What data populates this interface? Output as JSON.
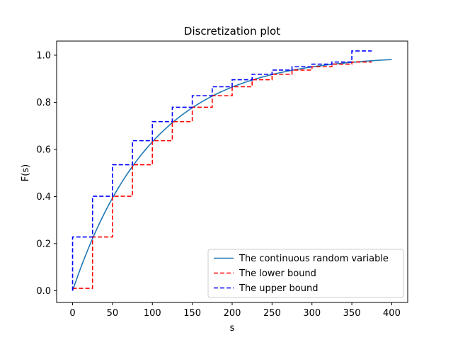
{
  "chart_data": {
    "type": "line",
    "title": "Discretization plot",
    "xlabel": "s",
    "ylabel": "F(s)",
    "xlim": [
      -20,
      420
    ],
    "ylim": [
      -0.05,
      1.06
    ],
    "xticks": [
      0,
      50,
      100,
      150,
      200,
      250,
      300,
      350,
      400
    ],
    "yticks": [
      0.0,
      0.2,
      0.4,
      0.6,
      0.8,
      1.0
    ],
    "xtick_labels": [
      "0",
      "50",
      "100",
      "150",
      "200",
      "250",
      "300",
      "350",
      "400"
    ],
    "ytick_labels": [
      "0.0",
      "0.2",
      "0.4",
      "0.6",
      "0.8",
      "1.0"
    ],
    "legend_position": "lower-right",
    "series": [
      {
        "name": "The continuous random variable",
        "style": "solid",
        "color": "#1f77b4",
        "x": [
          0,
          25,
          50,
          75,
          100,
          125,
          150,
          175,
          200,
          225,
          250,
          275,
          300,
          325,
          350,
          375,
          400
        ],
        "y": [
          0.0,
          0.221,
          0.393,
          0.528,
          0.632,
          0.713,
          0.777,
          0.826,
          0.865,
          0.895,
          0.918,
          0.936,
          0.95,
          0.961,
          0.97,
          0.977,
          0.982
        ]
      },
      {
        "name": "The lower bound",
        "style": "dashed",
        "color": "#ff0000",
        "x": [
          0,
          25,
          50,
          75,
          100,
          125,
          150,
          175,
          200,
          225,
          250,
          275,
          300,
          325,
          350
        ],
        "y": [
          0.01,
          0.228,
          0.401,
          0.535,
          0.637,
          0.718,
          0.779,
          0.828,
          0.866,
          0.896,
          0.919,
          0.937,
          0.951,
          0.962,
          0.971
        ],
        "step_end": 375
      },
      {
        "name": "The upper bound",
        "style": "dashed",
        "color": "#0000ff",
        "x": [
          0,
          25,
          50,
          75,
          100,
          125,
          150,
          175,
          200,
          225,
          250,
          275,
          300,
          325,
          350
        ],
        "y": [
          0.228,
          0.401,
          0.535,
          0.637,
          0.718,
          0.779,
          0.828,
          0.866,
          0.896,
          0.919,
          0.937,
          0.951,
          0.962,
          0.971,
          1.018
        ],
        "step_end": 375
      }
    ]
  }
}
